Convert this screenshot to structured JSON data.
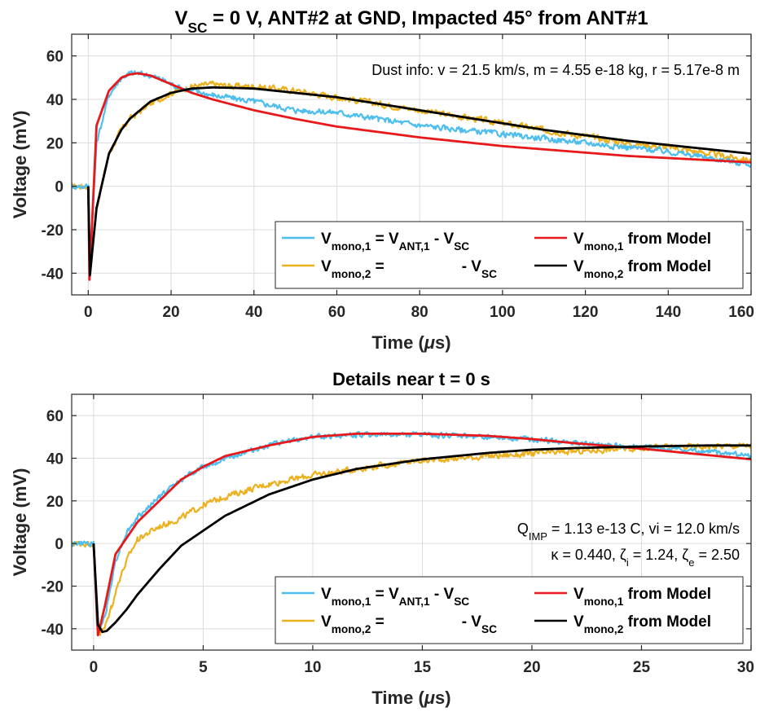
{
  "chart_data": [
    {
      "type": "line",
      "title": "V_SC = 0 V,   ANT#2 at GND,   Impacted 45° from ANT#1",
      "title_parts": {
        "v": "V",
        "sub": "SC",
        "rest": " = 0 V,   ANT#2 at GND,   Impacted 45° from ANT#1"
      },
      "xlabel": "Time (μs)",
      "xlabel_parts": {
        "pre": "Time (",
        "mu": "μ",
        "post": "s)"
      },
      "ylabel": "Voltage (mV)",
      "xlim": [
        -4,
        160
      ],
      "ylim": [
        -50,
        70
      ],
      "xticks": [
        0,
        20,
        40,
        60,
        80,
        100,
        120,
        140,
        160
      ],
      "yticks": [
        -40,
        -20,
        0,
        20,
        40,
        60
      ],
      "xtick_labels": [
        "0",
        "20",
        "40",
        "60",
        "80",
        "100",
        "120",
        "140",
        "160"
      ],
      "ytick_labels": [
        "-40",
        "-20",
        "0",
        "20",
        "40",
        "60"
      ],
      "grid": true,
      "annotation": "Dust info: v = 21.5 km/s, m = 4.55 e-18 kg, r = 5.17e-8 m",
      "legend_position": "bottom-right",
      "series": [
        {
          "role": "meas1",
          "color": "#4DBEEE",
          "noise": 1.2,
          "x": [
            -4,
            0,
            0.3,
            2,
            5,
            8,
            10,
            12,
            15,
            18,
            20,
            25,
            30,
            40,
            50,
            60,
            70,
            80,
            90,
            100,
            110,
            120,
            130,
            140,
            150,
            160
          ],
          "y": [
            0,
            0,
            -40,
            20,
            42,
            50,
            52,
            52,
            51,
            49,
            47,
            44,
            42,
            39,
            35,
            34,
            31,
            28,
            26,
            24,
            22,
            20,
            18,
            16,
            13,
            10
          ]
        },
        {
          "role": "meas2",
          "color": "#EDB120",
          "noise": 1.3,
          "x": [
            -4,
            0,
            0.3,
            2,
            5,
            8,
            10,
            15,
            20,
            25,
            30,
            35,
            40,
            50,
            60,
            70,
            80,
            90,
            100,
            110,
            120,
            130,
            140,
            150,
            160
          ],
          "y": [
            0,
            0,
            -42,
            -10,
            15,
            26,
            31,
            38,
            43,
            46,
            47,
            46,
            46,
            44,
            41,
            38,
            35,
            32,
            29,
            26,
            23,
            20,
            18,
            15,
            12
          ]
        },
        {
          "role": "model1",
          "color": "#E8191B",
          "noise": 0,
          "x": [
            0,
            0.3,
            2,
            5,
            8,
            10,
            12,
            15,
            20,
            25,
            30,
            40,
            50,
            60,
            70,
            80,
            90,
            100,
            110,
            120,
            130,
            140,
            150,
            160
          ],
          "y": [
            0,
            -43,
            28,
            44,
            50,
            51.5,
            52,
            51,
            47,
            43,
            40,
            35,
            31,
            27.5,
            25,
            22.5,
            20.5,
            18.5,
            17,
            15.5,
            14,
            13,
            12,
            11
          ]
        },
        {
          "role": "model2",
          "color": "#000000",
          "noise": 0,
          "x": [
            0,
            0.4,
            2,
            5,
            8,
            10,
            15,
            20,
            25,
            30,
            35,
            40,
            50,
            60,
            70,
            80,
            90,
            100,
            110,
            120,
            130,
            140,
            150,
            160
          ],
          "y": [
            0,
            -41,
            -10,
            15,
            26,
            31,
            39,
            43,
            45,
            45.5,
            45.3,
            45,
            43,
            41,
            38,
            35,
            32,
            29,
            26,
            23.5,
            21,
            19,
            17,
            15
          ]
        }
      ],
      "legend": [
        {
          "role": "meas1",
          "color": "#4DBEEE",
          "parts": [
            [
              "V",
              ""
            ],
            [
              "mono,1",
              "sub"
            ],
            [
              " = V",
              ""
            ],
            [
              "ANT,1",
              "sub"
            ],
            [
              " - V",
              ""
            ],
            [
              "SC",
              "sub"
            ]
          ]
        },
        {
          "role": "model1",
          "color": "#E8191B",
          "parts": [
            [
              "V",
              ""
            ],
            [
              "mono,1",
              "sub"
            ],
            [
              " from Model",
              ""
            ]
          ]
        },
        {
          "role": "meas2",
          "color": "#EDB120",
          "parts": [
            [
              "V",
              ""
            ],
            [
              "mono,2",
              "sub"
            ],
            [
              " =",
              ""
            ],
            [
              "gap",
              "gap"
            ],
            [
              "- V",
              ""
            ],
            [
              "SC",
              "sub"
            ]
          ]
        },
        {
          "role": "model2",
          "color": "#000000",
          "parts": [
            [
              "V",
              ""
            ],
            [
              "mono,2",
              "sub"
            ],
            [
              " from Model",
              ""
            ]
          ]
        }
      ]
    },
    {
      "type": "line",
      "title": "Details near t = 0 s",
      "xlabel": "Time (μs)",
      "xlabel_parts": {
        "pre": "Time (",
        "mu": "μ",
        "post": "s)"
      },
      "ylabel": "Voltage (mV)",
      "xlim": [
        -1,
        30
      ],
      "ylim": [
        -50,
        70
      ],
      "xticks": [
        0,
        5,
        10,
        15,
        20,
        25,
        30
      ],
      "yticks": [
        -40,
        -20,
        0,
        20,
        40,
        60
      ],
      "xtick_labels": [
        "0",
        "5",
        "10",
        "15",
        "20",
        "25",
        "30"
      ],
      "ytick_labels": [
        "-40",
        "-20",
        "0",
        "20",
        "40",
        "60"
      ],
      "grid": true,
      "annotation_lines": [
        [
          [
            "Q",
            ""
          ],
          [
            "IMP",
            "sub"
          ],
          [
            " = 1.13 e-13 C, vi = 12.0 km/s",
            ""
          ]
        ],
        [
          [
            "κ = 0.440, ζ",
            ""
          ],
          [
            "i",
            "sub"
          ],
          [
            " = 1.24, ζ",
            ""
          ],
          [
            "e",
            "sub"
          ],
          [
            " = 2.50",
            ""
          ]
        ]
      ],
      "legend_position": "bottom-right",
      "series": [
        {
          "role": "meas1",
          "color": "#4DBEEE",
          "noise": 1.1,
          "x": [
            -1,
            0,
            0.15,
            0.3,
            0.6,
            1,
            1.5,
            2,
            3,
            4,
            5,
            6,
            8,
            10,
            12,
            15,
            18,
            20,
            22,
            25,
            28,
            30
          ],
          "y": [
            0,
            0,
            -38,
            -41,
            -30,
            -8,
            5,
            12,
            22,
            30,
            36,
            40,
            46,
            50,
            51,
            51,
            50,
            49,
            47,
            45,
            43,
            41
          ]
        },
        {
          "role": "meas2",
          "color": "#EDB120",
          "noise": 1.3,
          "x": [
            -1,
            0,
            0.15,
            0.3,
            0.5,
            0.8,
            1.2,
            1.6,
            2,
            3,
            4,
            5,
            6,
            8,
            10,
            12,
            15,
            18,
            20,
            25,
            30
          ],
          "y": [
            0,
            0,
            -35,
            -42,
            -40,
            -30,
            -16,
            -6,
            2,
            8,
            12,
            18,
            22,
            28,
            32,
            35,
            39,
            41,
            42,
            45,
            46
          ]
        },
        {
          "role": "model1",
          "color": "#E8191B",
          "noise": 0,
          "x": [
            0,
            0.2,
            0.5,
            1,
            2,
            3,
            4,
            5,
            6,
            8,
            10,
            12,
            15,
            18,
            20,
            22,
            25,
            28,
            30
          ],
          "y": [
            0,
            -43,
            -30,
            -5,
            10,
            20,
            30,
            36,
            41,
            46,
            50,
            51.5,
            51.5,
            50.5,
            49,
            47,
            44.5,
            41.5,
            39.5
          ]
        },
        {
          "role": "model2",
          "color": "#000000",
          "noise": 0,
          "x": [
            0,
            0.2,
            0.4,
            0.6,
            1,
            1.5,
            2,
            3,
            4,
            5,
            6,
            8,
            10,
            12,
            15,
            18,
            20,
            22,
            25,
            28,
            30
          ],
          "y": [
            0,
            -38,
            -41.5,
            -41,
            -37,
            -31,
            -24,
            -12,
            -1,
            6,
            13,
            23,
            30,
            35,
            39.5,
            42.5,
            44,
            44.8,
            45.5,
            46,
            46
          ]
        }
      ],
      "legend": [
        {
          "role": "meas1",
          "color": "#4DBEEE",
          "parts": [
            [
              "V",
              ""
            ],
            [
              "mono,1",
              "sub"
            ],
            [
              " = V",
              ""
            ],
            [
              "ANT,1",
              "sub"
            ],
            [
              " - V",
              ""
            ],
            [
              "SC",
              "sub"
            ]
          ]
        },
        {
          "role": "model1",
          "color": "#E8191B",
          "parts": [
            [
              "V",
              ""
            ],
            [
              "mono,1",
              "sub"
            ],
            [
              " from Model",
              ""
            ]
          ]
        },
        {
          "role": "meas2",
          "color": "#EDB120",
          "parts": [
            [
              "V",
              ""
            ],
            [
              "mono,2",
              "sub"
            ],
            [
              " =",
              ""
            ],
            [
              "gap",
              "gap"
            ],
            [
              "- V",
              ""
            ],
            [
              "SC",
              "sub"
            ]
          ]
        },
        {
          "role": "model2",
          "color": "#000000",
          "parts": [
            [
              "V",
              ""
            ],
            [
              "mono,2",
              "sub"
            ],
            [
              " from Model",
              ""
            ]
          ]
        }
      ]
    }
  ]
}
